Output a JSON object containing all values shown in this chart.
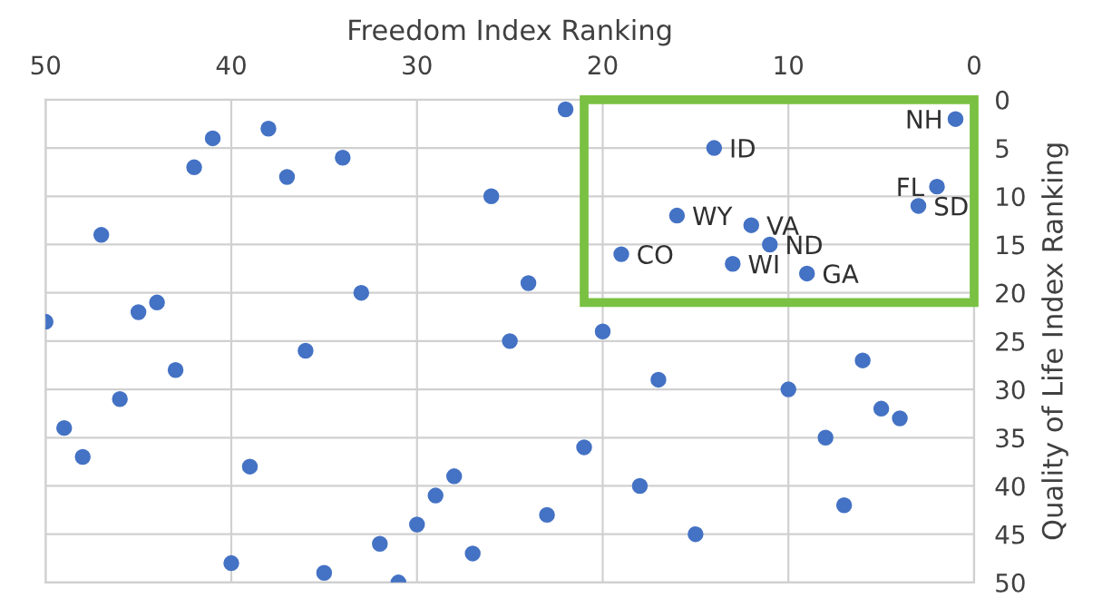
{
  "chart_data": {
    "type": "scatter",
    "xlabel": "Freedom Index Ranking",
    "ylabel": "Quality of Life Index Ranking",
    "x": [
      22,
      38,
      41,
      34,
      42,
      37,
      26,
      47,
      24,
      33,
      44,
      45,
      50,
      25,
      36,
      43,
      46,
      49,
      48,
      39,
      28,
      29,
      23,
      30,
      32,
      27,
      40,
      35,
      31,
      21,
      1,
      14,
      2,
      3,
      16,
      12,
      11,
      19,
      13,
      9,
      20,
      6,
      17,
      10,
      5,
      4,
      8,
      18,
      7,
      15
    ],
    "series": [
      {
        "color": "#4472c4",
        "values": [
          1,
          3,
          4,
          6,
          7,
          8,
          10,
          14,
          19,
          20,
          21,
          22,
          23,
          25,
          26,
          28,
          31,
          34,
          37,
          38,
          39,
          41,
          43,
          44,
          46,
          47,
          48,
          49,
          50,
          36,
          2,
          5,
          9,
          11,
          12,
          13,
          15,
          16,
          17,
          18,
          24,
          27,
          29,
          30,
          32,
          33,
          35,
          40,
          42,
          45
        ]
      }
    ],
    "annotations": [
      {
        "text": "NH",
        "x": 1,
        "y": 2
      },
      {
        "text": "ID",
        "x": 14,
        "y": 5
      },
      {
        "text": "FL",
        "x": 2,
        "y": 9
      },
      {
        "text": "SD",
        "x": 3,
        "y": 11
      },
      {
        "text": "WY",
        "x": 16,
        "y": 12
      },
      {
        "text": "VA",
        "x": 12,
        "y": 13
      },
      {
        "text": "ND",
        "x": 11,
        "y": 15
      },
      {
        "text": "CO",
        "x": 19,
        "y": 16
      },
      {
        "text": "WI",
        "x": 13,
        "y": 17
      },
      {
        "text": "GA",
        "x": 9,
        "y": 18
      }
    ],
    "xlim": [
      50,
      0
    ],
    "ylim": [
      50,
      0
    ],
    "xticks": [
      50,
      40,
      30,
      20,
      10,
      0
    ],
    "yticks": [
      0,
      5,
      10,
      15,
      20,
      25,
      30,
      35,
      40,
      45,
      50
    ],
    "grid": true
  }
}
